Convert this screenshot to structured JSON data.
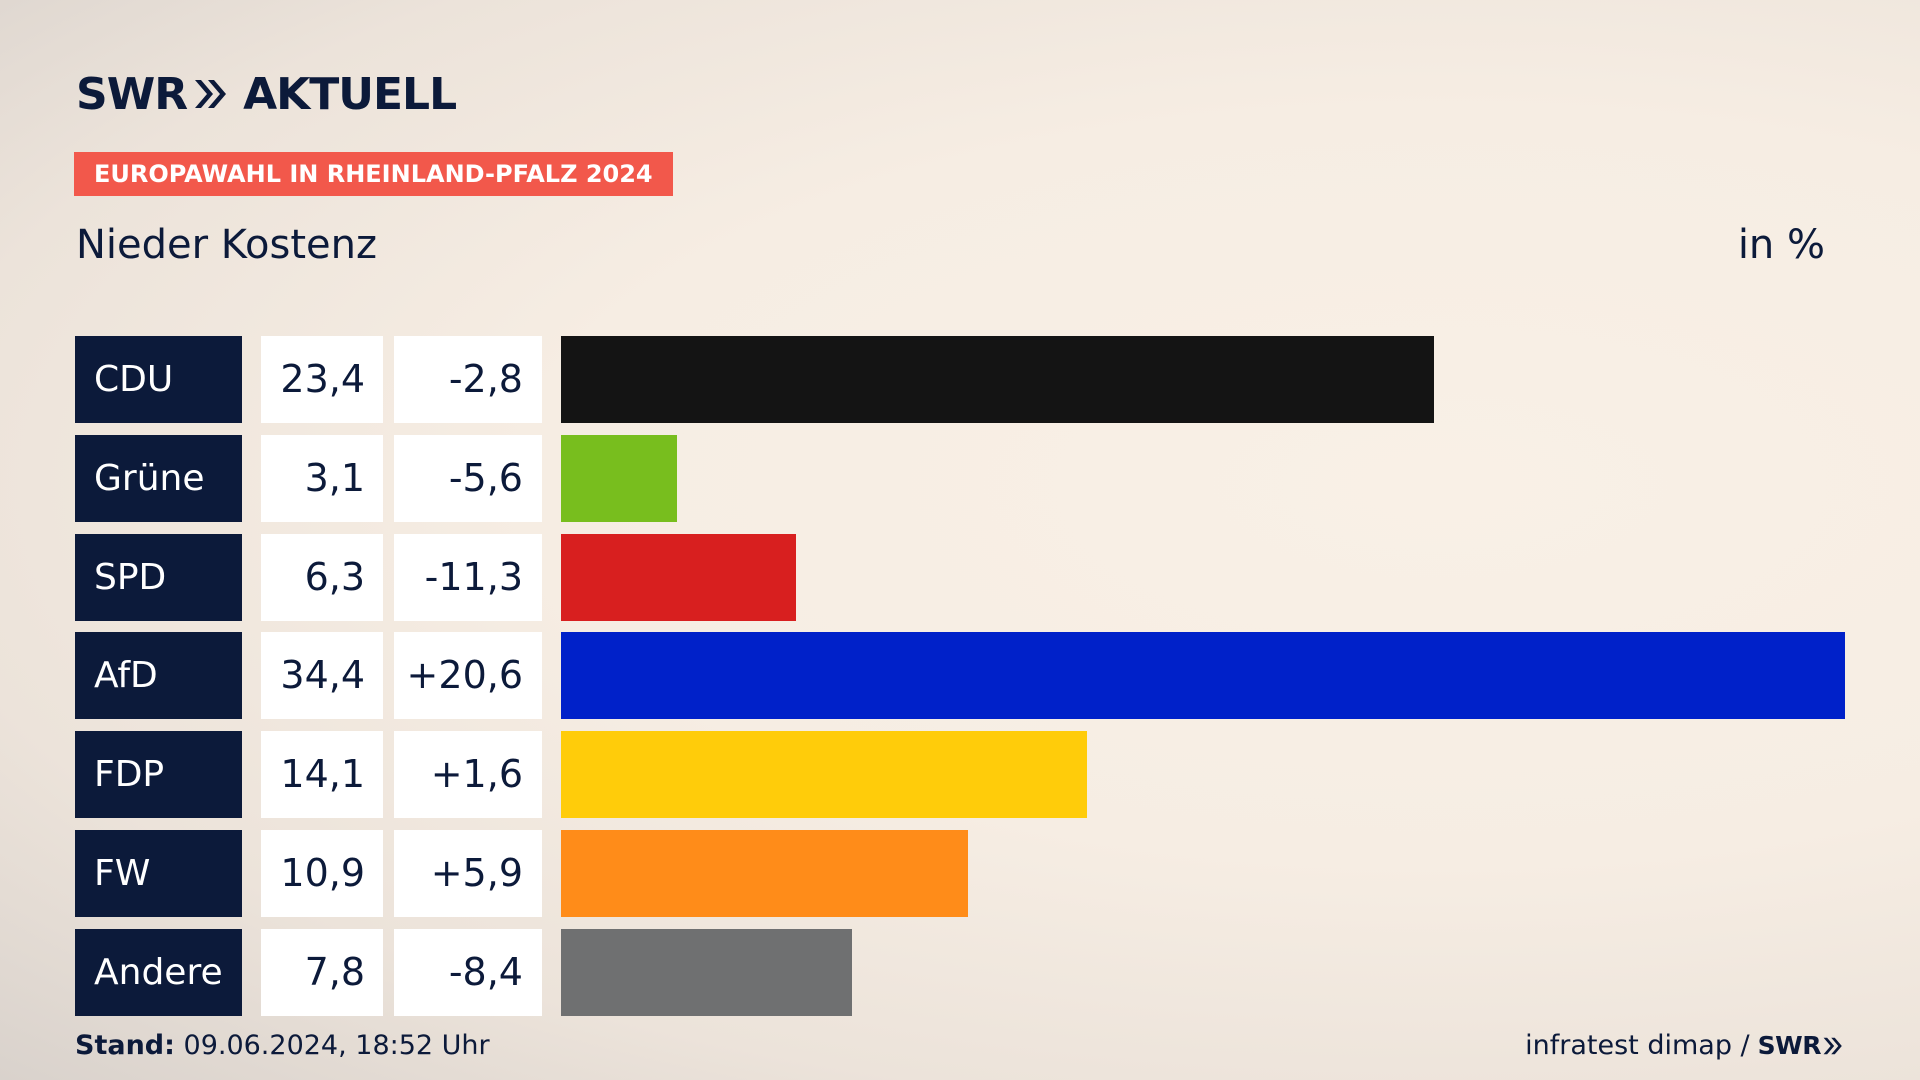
{
  "header": {
    "logo_left": "SWR",
    "logo_right": "AKTUELL",
    "badge": "EUROPAWAHL IN RHEINLAND-PFALZ 2024",
    "subtitle": "Nieder Kostenz",
    "unit": "in %"
  },
  "footer": {
    "stand_label": "Stand:",
    "stand_value": "09.06.2024, 18:52 Uhr",
    "source": "infratest dimap /",
    "source_logo": "SWR"
  },
  "colors": {
    "navy": "#0c1a3a",
    "badge": "#f2584b"
  },
  "chart_data": {
    "type": "bar",
    "orientation": "horizontal",
    "categories": [
      "CDU",
      "Grüne",
      "SPD",
      "AfD",
      "FDP",
      "FW",
      "Andere"
    ],
    "values": [
      23.4,
      3.1,
      6.3,
      34.4,
      14.1,
      10.9,
      7.8
    ],
    "value_labels": [
      "23,4",
      "3,1",
      "6,3",
      "34,4",
      "14,1",
      "10,9",
      "7,8"
    ],
    "changes": [
      -2.8,
      -5.6,
      -11.3,
      20.6,
      1.6,
      5.9,
      -8.4
    ],
    "change_labels": [
      "-2,8",
      "-5,6",
      "-11,3",
      "+20,6",
      "+1,6",
      "+5,9",
      "-8,4"
    ],
    "colors": [
      "#141414",
      "#78be1e",
      "#d81f1f",
      "#0021c9",
      "#ffcc0a",
      "#ff8c19",
      "#6f7071"
    ],
    "xlim": [
      0,
      34.4
    ]
  }
}
